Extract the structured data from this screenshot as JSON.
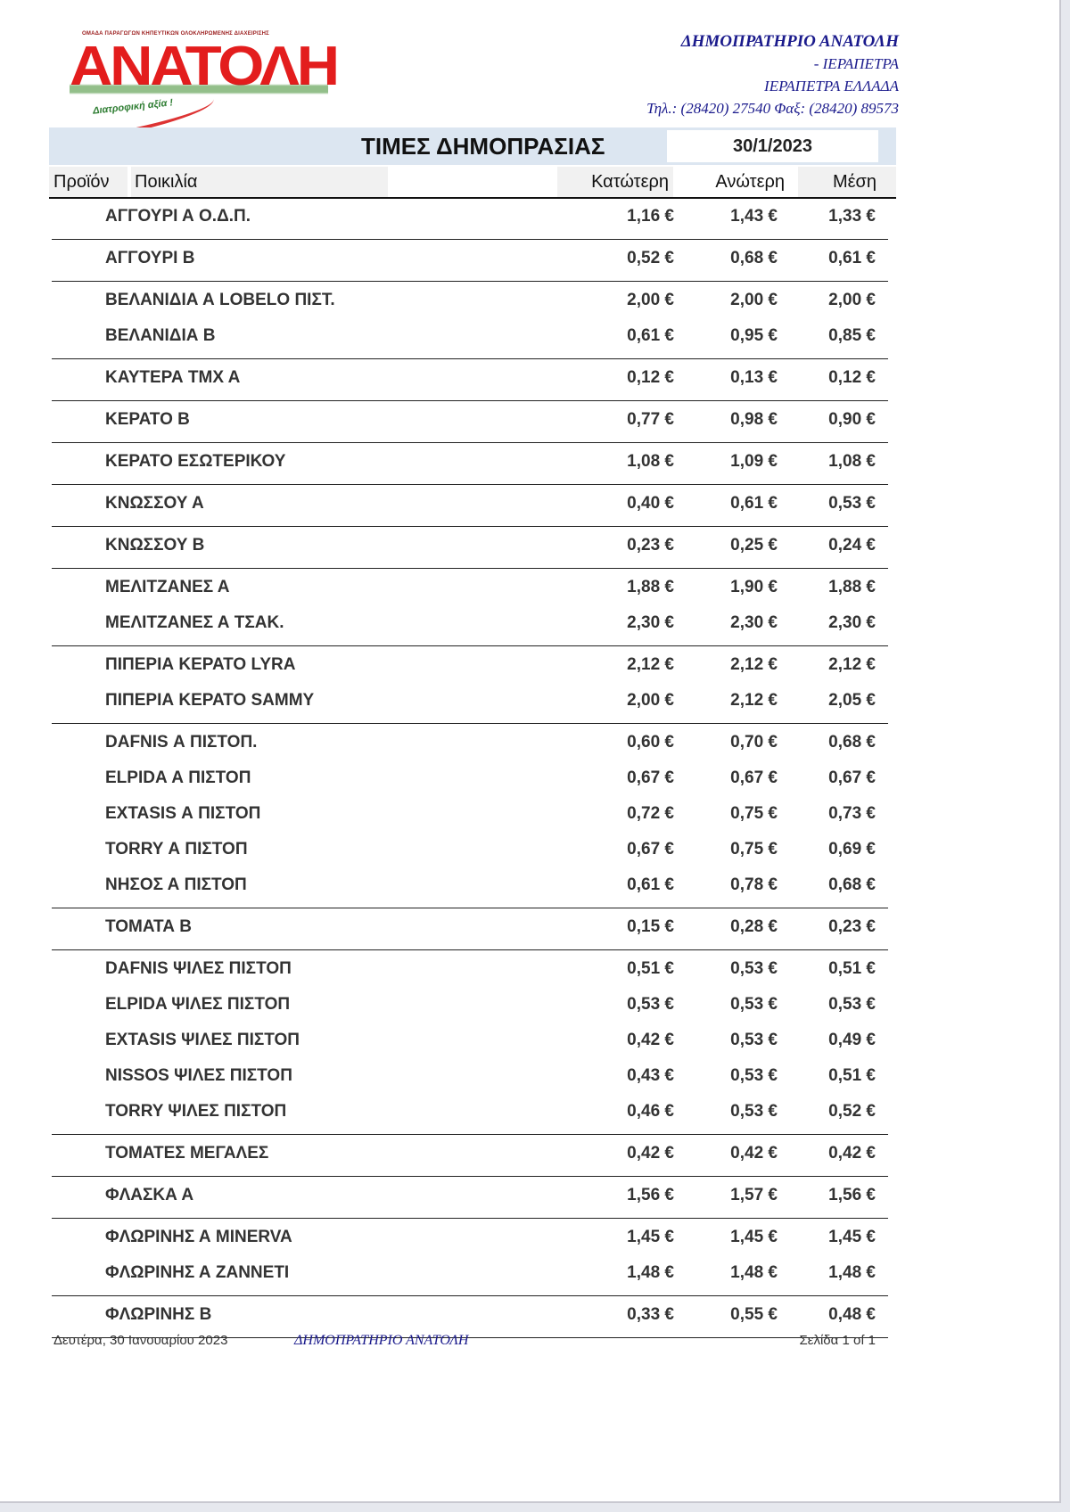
{
  "logo": {
    "top_text": "ΟΜΑΔΑ ΠΑΡΑΓΩΓΩΝ ΚΗΠΕΥΤΙΚΩΝ ΟΛΟΚΛΗΡΩΜΕΝΗΣ ΔΙΑΧΕΙΡΙΣΗΣ",
    "word": "ΑΝΑΤΟΛΗ",
    "slogan": "Διατροφική αξία !",
    "brand_red": "#e31d1d"
  },
  "address": {
    "line1": "ΔΗΜΟΠΡΑΤΗΡΙΟ ΑΝΑΤΟΛΗ",
    "line2": "- ΙΕΡΑΠΕΤΡΑ",
    "line3": "ΙΕΡΑΠΕΤΡΑ ΕΛΛΑΔΑ",
    "line4": "Τηλ.: (28420)  27540  Φαξ: (28420)  89573"
  },
  "title": "ΤΙΜΕΣ ΔΗΜΟΠΡΑΣΙΑΣ",
  "date": "30/1/2023",
  "columns": {
    "product": "Προϊόν",
    "variety": "Ποικιλία",
    "low": "Κατώτερη",
    "high": "Ανώτερη",
    "avg": "Μέση"
  },
  "groups": [
    [
      [
        "ΑΓΓΟΥΡΙ Α Ο.Δ.Π.",
        "1,16 €",
        "1,43 €",
        "1,33 €"
      ]
    ],
    [
      [
        "ΑΓΓΟΥΡΙ Β",
        "0,52 €",
        "0,68 €",
        "0,61 €"
      ]
    ],
    [
      [
        "ΒΕΛΑΝΙΔΙΑ Α LOBELO ΠΙΣΤ.",
        "2,00 €",
        "2,00 €",
        "2,00 €"
      ],
      [
        "ΒΕΛΑΝΙΔΙΑ Β",
        "0,61 €",
        "0,95 €",
        "0,85 €"
      ]
    ],
    [
      [
        "ΚΑΥΤΕΡΑ ΤΜΧ Α",
        "0,12 €",
        "0,13 €",
        "0,12 €"
      ]
    ],
    [
      [
        "ΚΕΡΑΤΟ Β",
        "0,77 €",
        "0,98 €",
        "0,90 €"
      ]
    ],
    [
      [
        "ΚΕΡΑΤΟ ΕΣΩΤΕΡΙΚΟΥ",
        "1,08 €",
        "1,09 €",
        "1,08 €"
      ]
    ],
    [
      [
        "ΚΝΩΣΣΟΥ Α",
        "0,40 €",
        "0,61 €",
        "0,53 €"
      ]
    ],
    [
      [
        "ΚΝΩΣΣΟΥ Β",
        "0,23 €",
        "0,25 €",
        "0,24 €"
      ]
    ],
    [
      [
        "ΜΕΛΙΤΖΑΝΕΣ Α",
        "1,88 €",
        "1,90 €",
        "1,88 €"
      ],
      [
        "ΜΕΛΙΤΖΑΝΕΣ Α ΤΣΑΚ.",
        "2,30 €",
        "2,30 €",
        "2,30 €"
      ]
    ],
    [
      [
        "ΠΙΠΕΡΙΑ ΚΕΡΑΤΟ LYRA",
        "2,12 €",
        "2,12 €",
        "2,12 €"
      ],
      [
        "ΠΙΠΕΡΙΑ ΚΕΡΑΤΟ SAMMY",
        "2,00 €",
        "2,12 €",
        "2,05 €"
      ]
    ],
    [
      [
        "DAFNIS Α ΠΙΣΤΟΠ.",
        "0,60 €",
        "0,70 €",
        "0,68 €"
      ],
      [
        "ELPIDA Α ΠΙΣΤΟΠ",
        "0,67 €",
        "0,67 €",
        "0,67 €"
      ],
      [
        "EXTASIS Α ΠΙΣΤΟΠ",
        "0,72 €",
        "0,75 €",
        "0,73 €"
      ],
      [
        "TORRY Α ΠΙΣΤΟΠ",
        "0,67 €",
        "0,75 €",
        "0,69 €"
      ],
      [
        "ΝΗΣΟΣ  Α ΠΙΣΤΟΠ",
        "0,61 €",
        "0,78 €",
        "0,68 €"
      ]
    ],
    [
      [
        "ΤΟΜΑΤΑ Β",
        "0,15 €",
        "0,28 €",
        "0,23 €"
      ]
    ],
    [
      [
        "DAFNIS ΨΙΛΕΣ ΠΙΣΤΟΠ",
        "0,51 €",
        "0,53 €",
        "0,51 €"
      ],
      [
        "ELPIDA ΨΙΛΕΣ ΠΙΣΤΟΠ",
        "0,53 €",
        "0,53 €",
        "0,53 €"
      ],
      [
        "EXTASIS ΨΙΛΕΣ ΠΙΣΤΟΠ",
        "0,42 €",
        "0,53 €",
        "0,49 €"
      ],
      [
        "NISSOS ΨΙΛΕΣ ΠΙΣΤΟΠ",
        "0,43 €",
        "0,53 €",
        "0,51 €"
      ],
      [
        "TORRY ΨΙΛΕΣ ΠΙΣΤΟΠ",
        "0,46 €",
        "0,53 €",
        "0,52 €"
      ]
    ],
    [
      [
        "ΤΟΜΑΤΕΣ ΜΕΓΑΛΕΣ",
        "0,42 €",
        "0,42 €",
        "0,42 €"
      ]
    ],
    [
      [
        "ΦΛΑΣΚΑ Α",
        "1,56 €",
        "1,57 €",
        "1,56 €"
      ]
    ],
    [
      [
        "ΦΛΩΡΙΝΗΣ Α MINERVA",
        "1,45 €",
        "1,45 €",
        "1,45 €"
      ],
      [
        "ΦΛΩΡΙΝΗΣ Α ΖΑΝΝΕΤΙ",
        "1,48 €",
        "1,48 €",
        "1,48 €"
      ]
    ],
    [
      [
        "ΦΛΩΡΙΝΗΣ Β",
        "0,33 €",
        "0,55 €",
        "0,48 €"
      ]
    ]
  ],
  "footer": {
    "date": "Δευτέρα, 30 Ιανουαρίου 2023",
    "name": "ΔΗΜΟΠΡΑΤΗΡΙΟ ΑΝΑΤΟΛΗ",
    "page": "Σελίδα 1 of 1"
  }
}
